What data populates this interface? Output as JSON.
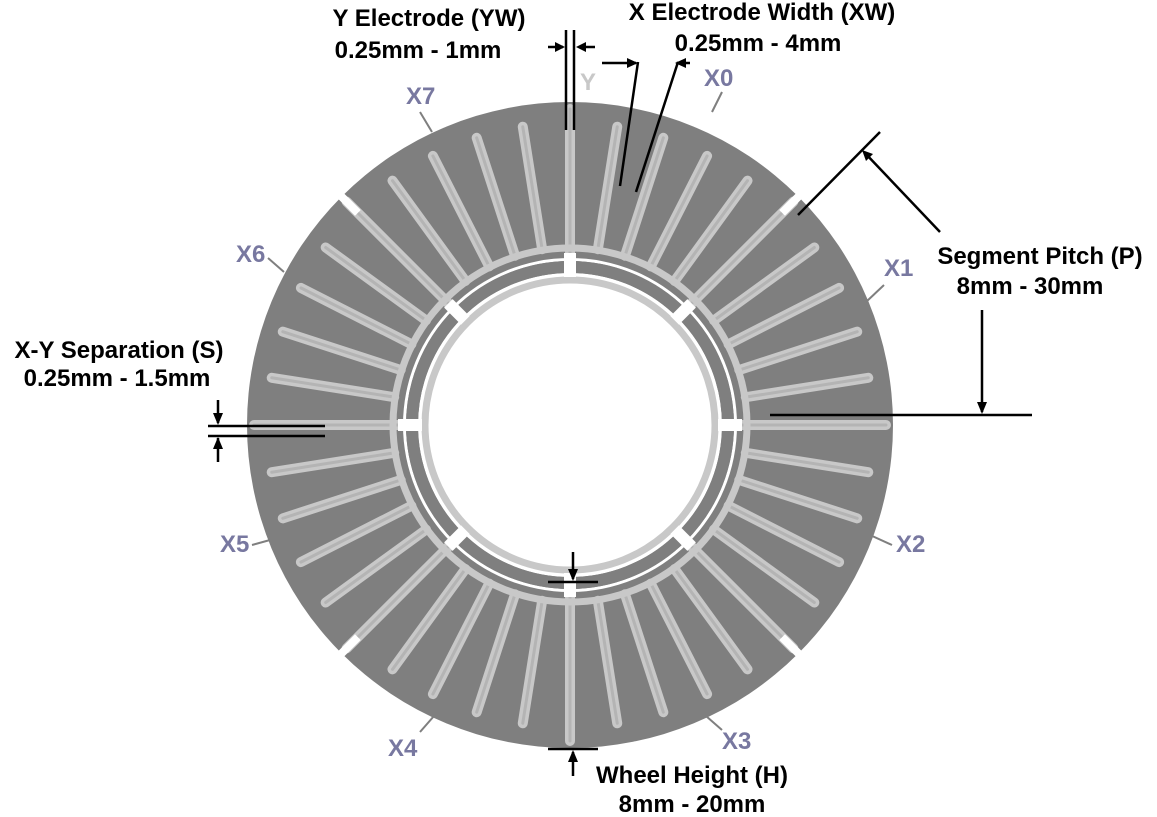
{
  "colors": {
    "wheel_fill": "#7f7f7f",
    "y_electrode": "#c8c8c8",
    "segment_label": "#7878a0",
    "annotation": "#000000",
    "background": "#ffffff"
  },
  "y_label": "Y",
  "segment_labels": [
    "X0",
    "X1",
    "X2",
    "X3",
    "X4",
    "X5",
    "X6",
    "X7"
  ],
  "annotations": {
    "y_electrode": {
      "title": "Y Electrode (YW)",
      "range": "0.25mm - 1mm"
    },
    "x_electrode": {
      "title": "X Electrode Width (XW)",
      "range": "0.25mm  -  4mm"
    },
    "segment_pitch": {
      "title": "Segment Pitch (P)",
      "range": "8mm - 30mm"
    },
    "separation": {
      "title": "X-Y Separation (S)",
      "range": "0.25mm - 1.5mm"
    },
    "wheel_height": {
      "title": "Wheel Height (H)",
      "range": "8mm  -  20mm"
    }
  }
}
